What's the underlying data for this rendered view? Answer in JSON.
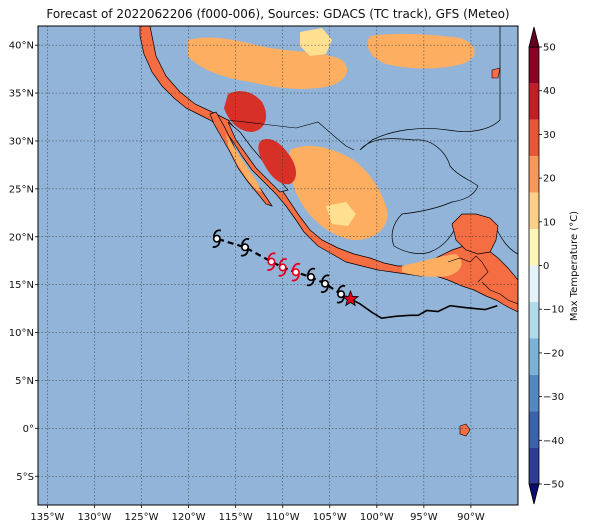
{
  "title": "Forecast of 2022062206 (f000-006), Sources: GDACS (TC track), GFS (Meteo)",
  "map": {
    "lon_range": [
      -136,
      -85
    ],
    "lat_range": [
      -8,
      42
    ],
    "lon_ticks": [
      {
        "value": -135,
        "label": "135°W"
      },
      {
        "value": -130,
        "label": "130°W"
      },
      {
        "value": -125,
        "label": "125°W"
      },
      {
        "value": -120,
        "label": "120°W"
      },
      {
        "value": -115,
        "label": "115°W"
      },
      {
        "value": -110,
        "label": "110°W"
      },
      {
        "value": -105,
        "label": "105°W"
      },
      {
        "value": -100,
        "label": "100°W"
      },
      {
        "value": -95,
        "label": "95°W"
      },
      {
        "value": -90,
        "label": "90°W"
      }
    ],
    "lat_ticks": [
      {
        "value": 40,
        "label": "40°N"
      },
      {
        "value": 35,
        "label": "35°N"
      },
      {
        "value": 30,
        "label": "30°N"
      },
      {
        "value": 25,
        "label": "25°N"
      },
      {
        "value": 20,
        "label": "20°N"
      },
      {
        "value": 15,
        "label": "15°N"
      },
      {
        "value": 10,
        "label": "10°N"
      },
      {
        "value": 5,
        "label": "5°N"
      },
      {
        "value": 0,
        "label": "0°"
      },
      {
        "value": -5,
        "label": "5°S"
      }
    ],
    "ocean_color": "#92b4d8",
    "gridlines": true
  },
  "track": {
    "past_track": [
      [
        -87.2,
        12.8
      ],
      [
        -88.5,
        12.4
      ],
      [
        -90.5,
        12.6
      ],
      [
        -92.2,
        12.8
      ],
      [
        -93.5,
        12.2
      ],
      [
        -94.7,
        12.3
      ],
      [
        -95.6,
        11.8
      ],
      [
        -96.5,
        11.8
      ],
      [
        -98.0,
        11.7
      ],
      [
        -99.5,
        11.5
      ],
      [
        -100.5,
        12.1
      ],
      [
        -101.8,
        13.0
      ],
      [
        -102.8,
        13.5
      ]
    ],
    "forecast_track": [
      [
        -102.8,
        13.5
      ],
      [
        -103.8,
        14.0
      ],
      [
        -105.5,
        15.1
      ],
      [
        -107.0,
        15.8
      ],
      [
        -108.6,
        16.3
      ],
      [
        -110.0,
        16.8
      ],
      [
        -111.2,
        17.4
      ],
      [
        -114.0,
        18.9
      ],
      [
        -117.0,
        19.8
      ]
    ],
    "current_position": {
      "lon": -102.8,
      "lat": 13.5
    },
    "symbols": [
      {
        "lon": -103.8,
        "lat": 14.0,
        "category": "tropical-storm"
      },
      {
        "lon": -105.5,
        "lat": 15.1,
        "category": "tropical-storm"
      },
      {
        "lon": -107.0,
        "lat": 15.8,
        "category": "tropical-storm"
      },
      {
        "lon": -108.6,
        "lat": 16.3,
        "category": "hurricane"
      },
      {
        "lon": -110.0,
        "lat": 16.8,
        "category": "hurricane"
      },
      {
        "lon": -111.2,
        "lat": 17.4,
        "category": "hurricane"
      },
      {
        "lon": -114.0,
        "lat": 18.9,
        "category": "tropical-storm"
      },
      {
        "lon": -117.0,
        "lat": 19.8,
        "category": "tropical-storm"
      }
    ],
    "colors": {
      "tropical-storm": "#000000",
      "hurricane": "#e3001b",
      "track": "#000000",
      "star": "#e3001b"
    }
  },
  "colorbar": {
    "label": "Max Temperature (°C)",
    "min": -50,
    "max": 50,
    "tick_values": [
      50,
      40,
      30,
      20,
      10,
      0,
      -10,
      -20,
      -30,
      -40,
      -50
    ],
    "tick_labels": [
      "50",
      "40",
      "30",
      "20",
      "10",
      "0",
      "−10",
      "−20",
      "−30",
      "−40",
      "−50"
    ],
    "colors": [
      "#2d3d96",
      "#3b62ab",
      "#5389c0",
      "#7cb2d5",
      "#b1dbeb",
      "#e3f3f8",
      "#fdf6b9",
      "#fdd08a",
      "#f99758",
      "#e75737",
      "#c11f26",
      "#8b0024"
    ]
  },
  "temperature_fill_colors": {
    "very-hot": "#d73027",
    "hot": "#f46d43",
    "warm": "#fdae61",
    "mild": "#fee090"
  }
}
